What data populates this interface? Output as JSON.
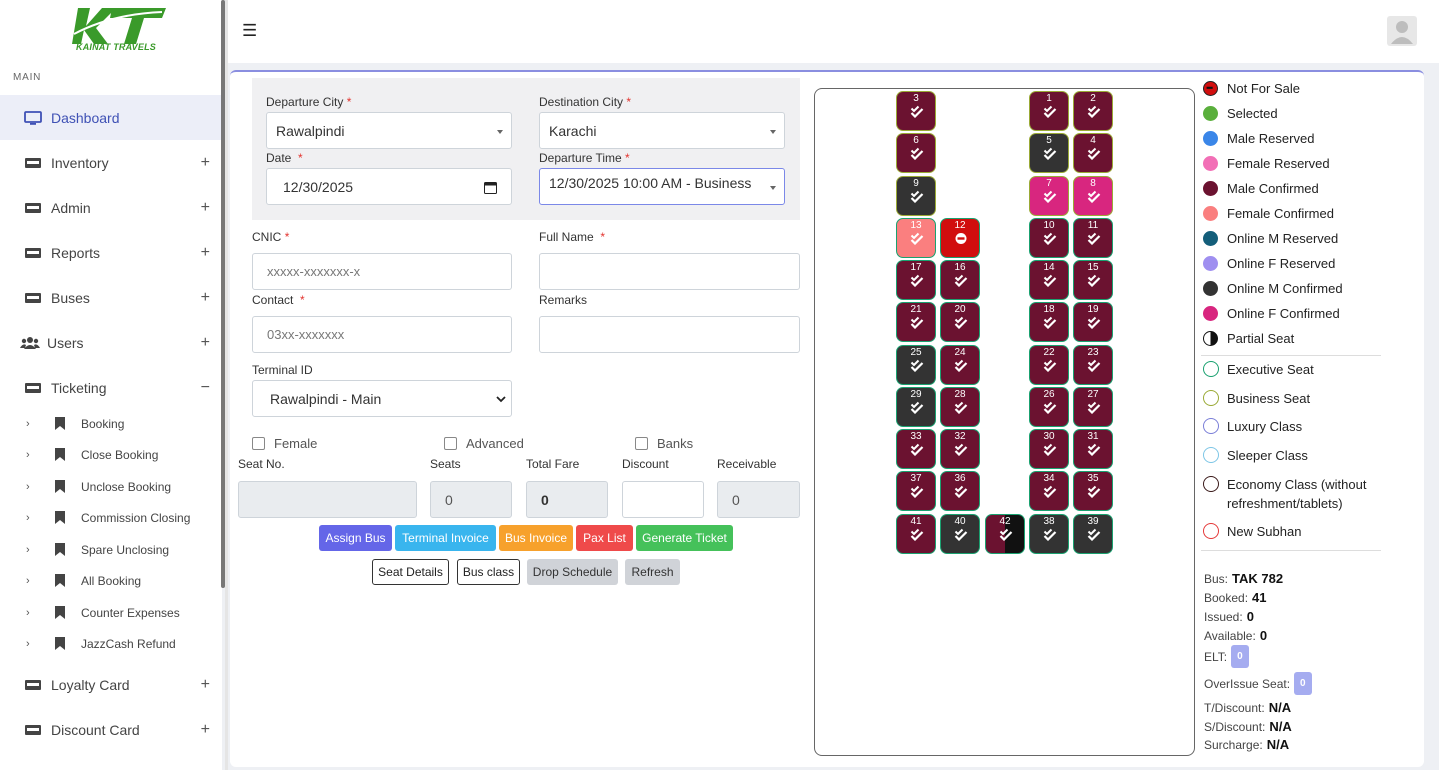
{
  "brand": {
    "logo_letters": "KT",
    "logo_text": "KAINAT TRAVELS"
  },
  "sidebar": {
    "section": "MAIN",
    "items": [
      {
        "label": "Dashboard",
        "icon": "monitor-icon",
        "active": true
      },
      {
        "label": "Inventory",
        "icon": "card-icon",
        "toggle": "+"
      },
      {
        "label": "Admin",
        "icon": "card-icon",
        "toggle": "+"
      },
      {
        "label": "Reports",
        "icon": "card-icon",
        "toggle": "+"
      },
      {
        "label": "Buses",
        "icon": "card-icon",
        "toggle": "+"
      },
      {
        "label": "Users",
        "icon": "users-icon",
        "toggle": "+"
      },
      {
        "label": "Ticketing",
        "icon": "card-icon",
        "toggle": "−"
      }
    ],
    "sub_items": [
      "Booking",
      "Close Booking",
      "Unclose Booking",
      "Commission Closing",
      "Spare Unclosing",
      "All Booking",
      "Counter Expenses",
      "JazzCash Refund"
    ],
    "items_after": [
      {
        "label": "Loyalty Card",
        "icon": "card-icon",
        "toggle": "+"
      },
      {
        "label": "Discount Card",
        "icon": "card-icon",
        "toggle": "+"
      }
    ]
  },
  "form": {
    "departure_city_label": "Departure City",
    "departure_city": "Rawalpindi",
    "destination_city_label": "Destination City",
    "destination_city": "Karachi",
    "date_label": "Date",
    "date": "12/30/2025",
    "departure_time_label": "Departure Time",
    "departure_time": "12/30/2025 10:00 AM - Business",
    "cnic_label": "CNIC",
    "cnic_placeholder": "xxxxx-xxxxxxx-x",
    "full_name_label": "Full Name",
    "contact_label": "Contact",
    "contact_placeholder": "03xx-xxxxxxx",
    "remarks_label": "Remarks",
    "terminal_label": "Terminal ID",
    "terminal": "Rawalpindi - Main",
    "required_mark": "*",
    "checkboxes": [
      "Female",
      "Advanced",
      "Banks"
    ],
    "seat_no_label": "Seat No.",
    "seats_label": "Seats",
    "seats_value": "0",
    "total_fare_label": "Total Fare",
    "total_fare_value": "0",
    "discount_label": "Discount",
    "receivable_label": "Receivable",
    "receivable_value": "0"
  },
  "buttons": {
    "assign_bus": "Assign Bus",
    "terminal_invoice": "Terminal Invoice",
    "bus_invoice": "Bus Invoice",
    "pax_list": "Pax List",
    "generate_ticket": "Generate Ticket",
    "seat_details": "Seat Details",
    "bus_class": "Bus class",
    "drop_schedule": "Drop Schedule",
    "refresh": "Refresh"
  },
  "colors": {
    "male_confirmed": "#6b1230",
    "online_m_confirmed": "#333333",
    "online_f_confirmed": "#d8267f",
    "female_confirmed": "#fa7f7f",
    "not_for_sale": "#d10e0e",
    "executive_ring": "#1aa170",
    "business_ring": "#9aaa36"
  },
  "seats": [
    {
      "n": "3",
      "s": "male_confirmed",
      "r": "business_ring"
    },
    {
      "n": "6",
      "s": "male_confirmed",
      "r": "business_ring"
    },
    {
      "n": "9",
      "s": "online_m_confirmed",
      "r": "business_ring"
    },
    {
      "n": "13",
      "s": "female_confirmed",
      "r": "executive_ring"
    },
    {
      "n": "12",
      "s": "not_for_sale",
      "r": "executive_ring"
    },
    {
      "n": "17",
      "s": "male_confirmed",
      "r": "executive_ring"
    },
    {
      "n": "16",
      "s": "male_confirmed",
      "r": "executive_ring"
    },
    {
      "n": "21",
      "s": "male_confirmed",
      "r": "executive_ring"
    },
    {
      "n": "20",
      "s": "male_confirmed",
      "r": "executive_ring"
    },
    {
      "n": "25",
      "s": "online_m_confirmed",
      "r": "executive_ring"
    },
    {
      "n": "24",
      "s": "male_confirmed",
      "r": "executive_ring"
    },
    {
      "n": "29",
      "s": "online_m_confirmed",
      "r": "executive_ring"
    },
    {
      "n": "28",
      "s": "male_confirmed",
      "r": "executive_ring"
    },
    {
      "n": "33",
      "s": "male_confirmed",
      "r": "executive_ring"
    },
    {
      "n": "32",
      "s": "male_confirmed",
      "r": "executive_ring"
    },
    {
      "n": "37",
      "s": "male_confirmed",
      "r": "executive_ring"
    },
    {
      "n": "36",
      "s": "male_confirmed",
      "r": "executive_ring"
    },
    {
      "n": "41",
      "s": "male_confirmed",
      "r": "executive_ring"
    },
    {
      "n": "40",
      "s": "online_m_confirmed",
      "r": "executive_ring"
    },
    {
      "n": "42",
      "s": "partial",
      "r": "executive_ring"
    },
    {
      "n": "1",
      "s": "male_confirmed",
      "r": "business_ring"
    },
    {
      "n": "2",
      "s": "male_confirmed",
      "r": "business_ring"
    },
    {
      "n": "5",
      "s": "online_m_confirmed",
      "r": "business_ring"
    },
    {
      "n": "4",
      "s": "male_confirmed",
      "r": "business_ring"
    },
    {
      "n": "7",
      "s": "online_f_confirmed",
      "r": "business_ring"
    },
    {
      "n": "8",
      "s": "online_f_confirmed",
      "r": "business_ring"
    },
    {
      "n": "10",
      "s": "male_confirmed",
      "r": "executive_ring"
    },
    {
      "n": "11",
      "s": "male_confirmed",
      "r": "executive_ring"
    },
    {
      "n": "14",
      "s": "male_confirmed",
      "r": "executive_ring"
    },
    {
      "n": "15",
      "s": "male_confirmed",
      "r": "executive_ring"
    },
    {
      "n": "18",
      "s": "male_confirmed",
      "r": "executive_ring"
    },
    {
      "n": "19",
      "s": "male_confirmed",
      "r": "executive_ring"
    },
    {
      "n": "22",
      "s": "male_confirmed",
      "r": "executive_ring"
    },
    {
      "n": "23",
      "s": "male_confirmed",
      "r": "executive_ring"
    },
    {
      "n": "26",
      "s": "male_confirmed",
      "r": "executive_ring"
    },
    {
      "n": "27",
      "s": "male_confirmed",
      "r": "executive_ring"
    },
    {
      "n": "30",
      "s": "male_confirmed",
      "r": "executive_ring"
    },
    {
      "n": "31",
      "s": "male_confirmed",
      "r": "executive_ring"
    },
    {
      "n": "34",
      "s": "male_confirmed",
      "r": "executive_ring"
    },
    {
      "n": "35",
      "s": "male_confirmed",
      "r": "executive_ring"
    },
    {
      "n": "38",
      "s": "online_m_confirmed",
      "r": "executive_ring"
    },
    {
      "n": "39",
      "s": "online_m_confirmed",
      "r": "executive_ring"
    }
  ],
  "legend": {
    "status": [
      {
        "label": "Not For Sale",
        "color": "#d10e0e",
        "kind": "minus"
      },
      {
        "label": "Selected",
        "color": "#5aaf3c"
      },
      {
        "label": "Male Reserved",
        "color": "#3a86e8"
      },
      {
        "label": "Female Reserved",
        "color": "#f26fb6"
      },
      {
        "label": "Male Confirmed",
        "color": "#6b1230"
      },
      {
        "label": "Female Confirmed",
        "color": "#fa7f7f"
      },
      {
        "label": "Online M Reserved",
        "color": "#145e7a"
      },
      {
        "label": "Online F Reserved",
        "color": "#9f8ff0"
      },
      {
        "label": "Online M Confirmed",
        "color": "#333333"
      },
      {
        "label": "Online F Confirmed",
        "color": "#d8267f"
      },
      {
        "label": "Partial Seat",
        "color": "#111111",
        "kind": "half"
      }
    ],
    "classes": [
      {
        "label": "Executive Seat",
        "color": "#1aa170"
      },
      {
        "label": "Business Seat",
        "color": "#9aaa36"
      },
      {
        "label": "Luxury Class",
        "color": "#7b7fd8"
      },
      {
        "label": "Sleeper Class",
        "color": "#7ec6e6"
      },
      {
        "label": "Economy Class (without refreshment/tablets)",
        "color": "#3a1a1a"
      },
      {
        "label": "New Subhan",
        "color": "#e53a3a"
      }
    ]
  },
  "bus_info": {
    "bus_label": "Bus:",
    "bus": "TAK 782",
    "booked_label": "Booked:",
    "booked": "41",
    "issued_label": "Issued:",
    "issued": "0",
    "available_label": "Available:",
    "available": "0",
    "elt_label": "ELT:",
    "elt": "0",
    "overissue_label": "OverIssue Seat:",
    "overissue": "0",
    "t_discount_label": "T/Discount:",
    "t_discount": "N/A",
    "s_discount_label": "S/Discount:",
    "s_discount": "N/A",
    "surcharge_label": "Surcharge:",
    "surcharge": "N/A"
  }
}
